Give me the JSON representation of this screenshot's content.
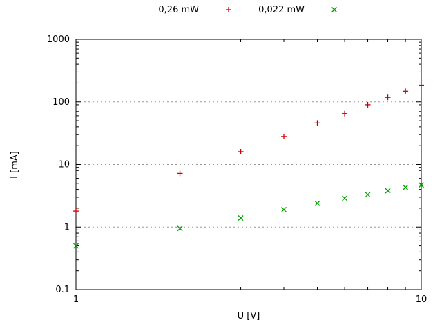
{
  "chart_data": {
    "type": "scatter",
    "title": "",
    "xlabel": "U [V]",
    "ylabel": "I [mA]",
    "x_scale": "log",
    "y_scale": "log",
    "xlim": [
      1,
      10
    ],
    "ylim": [
      0.1,
      1000
    ],
    "x_ticks": [
      1,
      10
    ],
    "x_tick_labels": [
      "1",
      "10"
    ],
    "y_ticks": [
      0.1,
      1,
      10,
      100,
      1000
    ],
    "y_tick_labels": [
      "0.1",
      "1",
      "10",
      "100",
      "1000"
    ],
    "grid": "horizontal-dotted-major",
    "grid_color": "#999999",
    "axis_color": "#000000",
    "legend_position": "top-center-outside",
    "series": [
      {
        "name": "0,26 mW",
        "marker": "plus",
        "color": "#cc0000",
        "x": [
          1,
          2,
          3,
          4,
          5,
          6,
          7,
          8,
          9,
          10
        ],
        "y": [
          1.8,
          7.2,
          16,
          28,
          46,
          65,
          90,
          118,
          148,
          185
        ]
      },
      {
        "name": "0,022 mW",
        "marker": "cross",
        "color": "#00a000",
        "x": [
          1,
          2,
          3,
          4,
          5,
          6,
          7,
          8,
          9,
          10
        ],
        "y": [
          0.5,
          0.95,
          1.4,
          1.9,
          2.4,
          2.9,
          3.3,
          3.8,
          4.3,
          4.7
        ]
      }
    ]
  }
}
